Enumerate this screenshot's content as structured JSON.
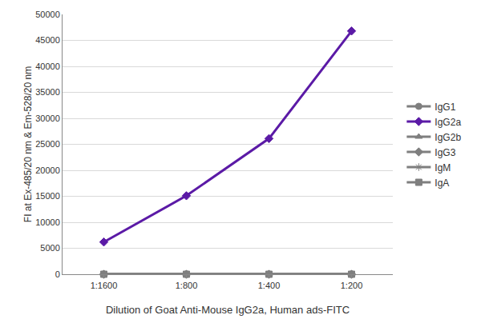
{
  "chart_data": {
    "type": "line",
    "x_label": "Dilution of Goat Anti-Mouse IgG2a, Human ads-FITC",
    "y_label": "FI at Ex-485/20 nm & Em-528/20 nm",
    "categories": [
      "1:1600",
      "1:800",
      "1:400",
      "1:200"
    ],
    "series": [
      {
        "name": "IgG1",
        "color": "#7f7f7f",
        "marker": "circle",
        "line_style": "solid",
        "values": [
          0,
          0,
          0,
          0
        ]
      },
      {
        "name": "IgG2a",
        "color": "#5b1aa6",
        "marker": "diamond",
        "line_style": "solid",
        "values": [
          6200,
          15100,
          26100,
          46800
        ]
      },
      {
        "name": "IgG2b",
        "color": "#7f7f7f",
        "marker": "triangle-up",
        "line_style": "solid",
        "values": [
          0,
          0,
          0,
          0
        ]
      },
      {
        "name": "IgG3",
        "color": "#7f7f7f",
        "marker": "diamond",
        "line_style": "solid",
        "values": [
          0,
          0,
          0,
          0
        ]
      },
      {
        "name": "IgM",
        "color": "#7f7f7f",
        "marker": "asterisk-open",
        "line_style": "solid",
        "values": [
          0,
          0,
          0,
          0
        ]
      },
      {
        "name": "IgA",
        "color": "#7f7f7f",
        "marker": "square",
        "line_style": "solid",
        "values": [
          0,
          0,
          0,
          0
        ]
      }
    ],
    "ylim": [
      0,
      50000
    ],
    "yticks": [
      0,
      5000,
      10000,
      15000,
      20000,
      25000,
      30000,
      35000,
      40000,
      45000,
      50000
    ],
    "grid": true,
    "legend": "right"
  }
}
